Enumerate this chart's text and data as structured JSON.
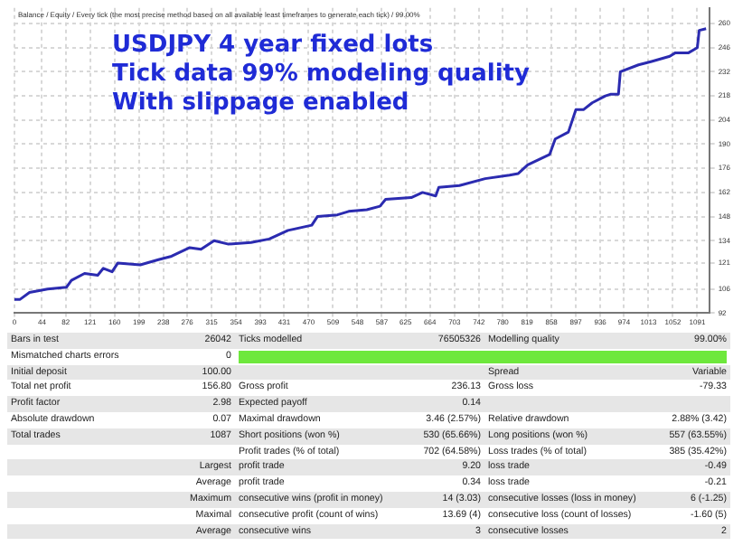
{
  "chart_data": {
    "type": "line",
    "title": "USDJPY 4 year fixed lots\nTick data 99% modeling quality\nWith slippage enabled",
    "x": [
      0,
      9,
      24,
      53,
      83,
      91,
      112,
      133,
      142,
      156,
      165,
      201,
      230,
      251,
      280,
      298,
      319,
      342,
      378,
      407,
      437,
      475,
      484,
      516,
      534,
      563,
      584,
      593,
      634,
      652,
      673,
      678,
      711,
      752,
      791,
      805,
      820,
      855,
      864,
      885,
      897,
      909,
      923,
      944,
      953,
      965,
      968,
      997,
      1018,
      1047,
      1056,
      1077,
      1091,
      1094,
      1105
    ],
    "series": [
      {
        "color": "#2b2bb0",
        "values": [
          100,
          100,
          104,
          106,
          107,
          111,
          115,
          114,
          118,
          116,
          121,
          120,
          123,
          125,
          130,
          129,
          134,
          132,
          133,
          135,
          140,
          143,
          148,
          149,
          151,
          152,
          154,
          158,
          159,
          162,
          160,
          165,
          166,
          170,
          172,
          173,
          178,
          184,
          193,
          197,
          210,
          210,
          214,
          218,
          219,
          219,
          232,
          236,
          238,
          241,
          243,
          243,
          246,
          256,
          257
        ]
      }
    ],
    "xlim": [
      0,
      1110
    ],
    "xticks": [
      0,
      44,
      82,
      121,
      160,
      199,
      238,
      276,
      315,
      354,
      393,
      431,
      470,
      509,
      548,
      587,
      625,
      664,
      703,
      742,
      780,
      819,
      858,
      897,
      936,
      974,
      1013,
      1052,
      1091
    ],
    "ylim": [
      92,
      269
    ],
    "yticks": [
      92,
      106,
      121,
      134,
      148,
      162,
      176,
      190,
      204,
      218,
      232,
      246,
      260
    ],
    "grid": true,
    "legend": false,
    "marker": "none",
    "line_style": "solid",
    "annotations": [
      "Balance / Equity / Every tick (the most precise method based on all available least timeframes to generate each tick) / 99.00%",
      "Bars in test",
      "26042",
      "Ticks modelled",
      "76505326",
      "Modelling quality",
      "99.00%",
      "Mismatched charts errors",
      "0",
      "Initial deposit",
      "100.00",
      "Spread",
      "Variable",
      "Total net profit",
      "156.80",
      "Gross profit",
      "236.13",
      "Gross loss",
      "-79.33",
      "Profit factor",
      "2.98",
      "Expected payoff",
      "0.14",
      "Absolute drawdown",
      "0.07",
      "Maximal drawdown",
      "3.46 (2.57%)",
      "Relative drawdown",
      "2.88% (3.42)",
      "Total trades",
      "1087",
      "Short positions (won %)",
      "530 (65.66%)",
      "Long positions (won %)",
      "557 (63.55%)",
      "Profit trades (% of total)",
      "702 (64.58%)",
      "Loss trades (% of total)",
      "385 (35.42%)",
      "Largest",
      "profit trade",
      "9.20",
      "loss trade",
      "-0.49",
      "Average",
      "profit trade",
      "0.34",
      "loss trade",
      "-0.21",
      "Maximum",
      "consecutive wins (profit in money)",
      "14 (3.03)",
      "consecutive losses (loss in money)",
      "6 (-1.25)",
      "Maximal",
      "consecutive profit (count of wins)",
      "13.69 (4)",
      "consecutive loss (count of losses)",
      "-1.60 (5)",
      "Average",
      "consecutive wins",
      "3",
      "consecutive losses",
      "2"
    ]
  }
}
